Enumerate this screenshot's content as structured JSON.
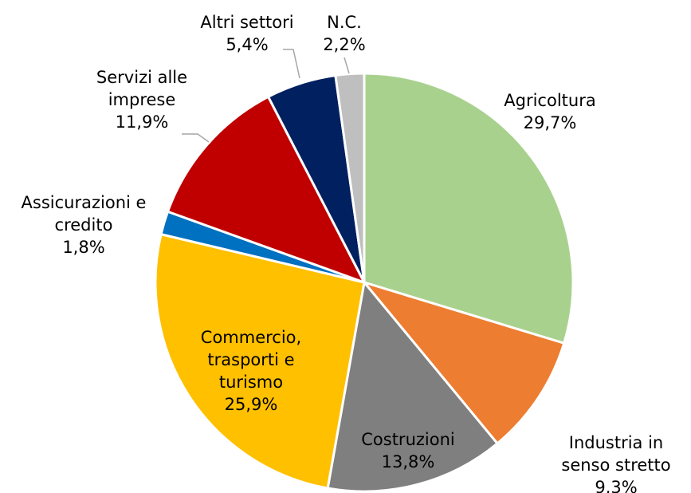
{
  "chart_data": {
    "type": "pie",
    "categories": [
      "Agricoltura",
      "Industria in senso stretto",
      "Costruzioni",
      "Commercio, trasporti e turismo",
      "Assicurazioni e credito",
      "Servizi alle imprese",
      "Altri settori",
      "N.C."
    ],
    "values": [
      29.7,
      9.3,
      13.8,
      25.9,
      1.8,
      11.9,
      5.4,
      2.2
    ],
    "value_labels": [
      "29,7%",
      "9,3%",
      "13,8%",
      "25,9%",
      "1,8%",
      "11,9%",
      "5,4%",
      "2,2%"
    ],
    "colors": [
      "#a9d18e",
      "#ed7d31",
      "#7f7f7f",
      "#ffc000",
      "#0070c0",
      "#c00000",
      "#002060",
      "#bfbfbf"
    ]
  }
}
